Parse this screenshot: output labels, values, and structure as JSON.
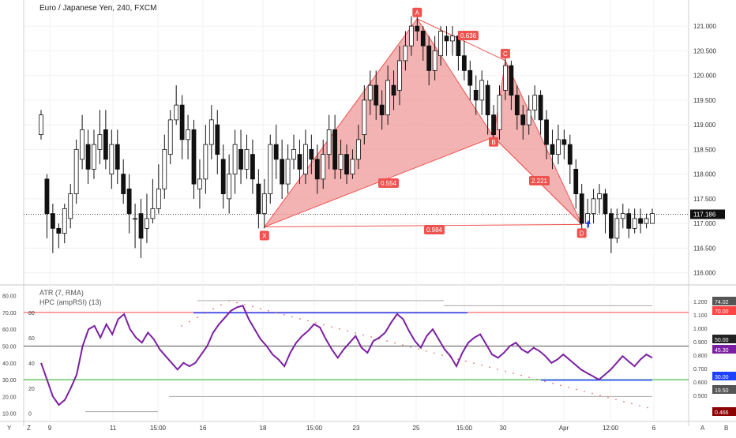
{
  "chart_title": "Euro / Japanese Yen, 240, FXCM",
  "indicators": {
    "atr_label": "ATR (7, RMA)",
    "hpc_label": "HPC (ampRSI) (13)"
  },
  "corner_labels": {
    "left": "Y",
    "z": "Z",
    "right_a": "A",
    "right_b": "B"
  },
  "colors": {
    "bull": "#ffffff",
    "bear": "#111111",
    "pattern_fill": "#ef9a9a",
    "pattern_stroke": "#ef5350",
    "rsi": "#7b1fa2",
    "up_line": "#1e40ff",
    "band_red": "#ff4444",
    "band_green": "#22aa22"
  },
  "chart_data": [
    {
      "type": "candlestick",
      "symbol": "EURJPY",
      "y_ticks": [
        "121.000",
        "120.500",
        "120.000",
        "119.500",
        "119.000",
        "118.500",
        "118.000",
        "117.500",
        "117.000",
        "116.500",
        "116.000"
      ],
      "ylim": [
        115.85,
        121.45
      ],
      "current_price": "117.186",
      "x_ticks": [
        "9",
        "11",
        "15:00",
        "16",
        "18",
        "15:00",
        "23",
        "25",
        "15:00",
        "30",
        "Apr",
        "12:00",
        "6"
      ],
      "pattern_points": [
        {
          "label": "X",
          "i": 38,
          "y": 116.93
        },
        {
          "label": "A",
          "i": 64,
          "y": 121.15
        },
        {
          "label": "B",
          "i": 77,
          "y": 118.75
        },
        {
          "label": "C",
          "i": 79,
          "y": 120.3
        },
        {
          "label": "D",
          "i": 92,
          "y": 116.98
        }
      ],
      "ratios": [
        "0.554",
        "0.636",
        "2.221",
        "0.984"
      ],
      "candles": [
        [
          118.8,
          119.2,
          119.3,
          118.7
        ],
        [
          117.9,
          117.2,
          118.0,
          116.7
        ],
        [
          117.2,
          116.9,
          117.4,
          116.4
        ],
        [
          116.9,
          116.8,
          117.0,
          116.5
        ],
        [
          116.8,
          117.3,
          117.4,
          116.6
        ],
        [
          117.1,
          117.6,
          117.8,
          116.9
        ],
        [
          117.6,
          118.5,
          118.7,
          117.4
        ],
        [
          118.3,
          118.9,
          119.2,
          118.1
        ],
        [
          118.6,
          118.1,
          118.9,
          117.8
        ],
        [
          118.1,
          118.6,
          118.9,
          117.9
        ],
        [
          118.5,
          118.8,
          119.3,
          118.2
        ],
        [
          118.9,
          118.3,
          119.3,
          118.1
        ],
        [
          118.0,
          118.6,
          118.9,
          117.7
        ],
        [
          118.6,
          118.1,
          118.9,
          117.8
        ],
        [
          118.0,
          117.6,
          118.3,
          117.4
        ],
        [
          117.7,
          117.2,
          118.0,
          116.8
        ],
        [
          117.1,
          117.1,
          117.4,
          116.5
        ],
        [
          117.2,
          116.7,
          117.5,
          116.3
        ],
        [
          116.9,
          117.1,
          117.6,
          116.6
        ],
        [
          117.1,
          117.3,
          117.9,
          117.0
        ],
        [
          117.3,
          117.7,
          118.2,
          117.2
        ],
        [
          117.7,
          118.5,
          118.8,
          117.5
        ],
        [
          118.4,
          119.1,
          119.3,
          118.2
        ],
        [
          119.1,
          119.4,
          119.8,
          119.0
        ],
        [
          119.4,
          118.7,
          119.6,
          118.3
        ],
        [
          118.7,
          118.9,
          119.2,
          118.3
        ],
        [
          118.9,
          117.8,
          119.1,
          117.5
        ],
        [
          117.7,
          117.9,
          118.3,
          117.3
        ],
        [
          117.9,
          118.6,
          119.0,
          117.6
        ],
        [
          118.6,
          119.1,
          119.4,
          118.3
        ],
        [
          119.0,
          118.4,
          119.3,
          118.0
        ],
        [
          118.3,
          117.6,
          118.6,
          117.3
        ],
        [
          117.5,
          118.0,
          118.4,
          117.2
        ],
        [
          118.0,
          118.6,
          118.9,
          117.6
        ],
        [
          118.5,
          118.1,
          118.9,
          117.8
        ],
        [
          118.1,
          118.5,
          118.8,
          117.9
        ],
        [
          118.4,
          117.9,
          118.7,
          117.6
        ],
        [
          117.8,
          117.2,
          118.1,
          116.9
        ],
        [
          117.2,
          117.6,
          117.9,
          116.9
        ],
        [
          117.6,
          118.6,
          118.8,
          117.4
        ],
        [
          118.6,
          118.3,
          119.0,
          117.9
        ],
        [
          118.3,
          117.8,
          118.7,
          117.5
        ],
        [
          117.8,
          118.3,
          118.6,
          117.6
        ],
        [
          118.3,
          118.5,
          118.8,
          118.1
        ],
        [
          118.4,
          118.1,
          118.7,
          117.8
        ],
        [
          118.0,
          118.6,
          118.9,
          117.8
        ],
        [
          118.5,
          118.3,
          118.8,
          118.0
        ],
        [
          118.3,
          117.9,
          118.6,
          117.6
        ],
        [
          117.9,
          118.4,
          118.7,
          117.7
        ],
        [
          118.4,
          118.9,
          119.2,
          118.1
        ],
        [
          118.9,
          118.1,
          119.2,
          117.9
        ],
        [
          118.1,
          118.4,
          118.7,
          117.9
        ],
        [
          118.4,
          118.0,
          118.6,
          117.8
        ],
        [
          118.0,
          118.3,
          118.5,
          117.9
        ],
        [
          118.3,
          118.7,
          119.0,
          118.1
        ],
        [
          118.8,
          119.5,
          119.8,
          118.6
        ],
        [
          119.5,
          119.8,
          120.1,
          119.2
        ],
        [
          119.8,
          119.4,
          120.1,
          119.1
        ],
        [
          119.4,
          119.2,
          119.7,
          118.9
        ],
        [
          119.2,
          119.9,
          120.2,
          119.0
        ],
        [
          119.8,
          119.6,
          120.1,
          119.3
        ],
        [
          119.7,
          120.3,
          120.6,
          119.4
        ],
        [
          120.3,
          120.6,
          120.9,
          120.1
        ],
        [
          120.6,
          121.0,
          121.2,
          120.4
        ],
        [
          121.0,
          120.9,
          121.2,
          120.7
        ],
        [
          120.9,
          120.6,
          121.0,
          120.3
        ],
        [
          120.6,
          120.1,
          120.8,
          119.8
        ],
        [
          120.1,
          120.5,
          120.8,
          119.9
        ],
        [
          120.4,
          120.9,
          121.0,
          120.2
        ],
        [
          120.8,
          120.7,
          121.0,
          120.4
        ],
        [
          120.7,
          120.8,
          121.0,
          120.4
        ],
        [
          120.8,
          120.4,
          120.9,
          120.1
        ],
        [
          120.4,
          120.1,
          120.7,
          119.9
        ],
        [
          120.1,
          119.8,
          120.3,
          119.5
        ],
        [
          119.7,
          119.5,
          120.0,
          119.2
        ],
        [
          119.5,
          119.9,
          120.1,
          119.2
        ],
        [
          119.8,
          119.2,
          119.9,
          118.8
        ],
        [
          119.2,
          118.8,
          119.4,
          118.6
        ],
        [
          118.9,
          119.6,
          119.8,
          118.7
        ],
        [
          119.7,
          120.2,
          120.4,
          119.5
        ],
        [
          120.2,
          119.6,
          120.3,
          119.3
        ],
        [
          119.6,
          119.2,
          119.8,
          118.9
        ],
        [
          119.2,
          119.0,
          119.4,
          118.7
        ],
        [
          119.0,
          119.3,
          119.6,
          118.8
        ],
        [
          119.3,
          119.6,
          119.8,
          119.1
        ],
        [
          119.6,
          119.1,
          119.7,
          118.8
        ],
        [
          119.1,
          118.6,
          119.3,
          118.3
        ],
        [
          118.6,
          118.4,
          118.9,
          118.1
        ],
        [
          118.4,
          118.7,
          119.0,
          118.2
        ],
        [
          118.7,
          118.6,
          118.9,
          118.3
        ],
        [
          118.6,
          118.2,
          118.8,
          117.8
        ],
        [
          118.1,
          117.6,
          118.3,
          117.3
        ],
        [
          117.6,
          117.0,
          117.8,
          116.8
        ],
        [
          117.0,
          117.2,
          117.5,
          116.9
        ],
        [
          117.2,
          117.5,
          117.7,
          117.0
        ],
        [
          117.5,
          117.6,
          117.8,
          117.2
        ],
        [
          117.6,
          117.2,
          117.7,
          116.8
        ],
        [
          117.2,
          116.7,
          117.3,
          116.4
        ],
        [
          116.7,
          117.1,
          117.3,
          116.6
        ],
        [
          117.1,
          117.2,
          117.4,
          116.9
        ],
        [
          117.2,
          116.9,
          117.3,
          116.7
        ],
        [
          116.9,
          117.1,
          117.3,
          116.8
        ],
        [
          117.1,
          117.0,
          117.3,
          116.8
        ],
        [
          117.0,
          117.1,
          117.2,
          116.9
        ],
        [
          117.0,
          117.2,
          117.3,
          117.0
        ]
      ]
    },
    {
      "type": "line",
      "name": "HPC (ampRSI) (13)",
      "y_ticks_left": [
        "80.00",
        "70.00",
        "60.00",
        "50.00",
        "40.00",
        "30.00",
        "20.00",
        "10.00"
      ],
      "y_ticks_inner": [
        "80",
        "60",
        "40",
        "20",
        "0"
      ],
      "y_ticks_right": [
        "1.200",
        "1.100",
        "1.000",
        "0.900",
        "0.800",
        "0.700",
        "0.600",
        "0.500"
      ],
      "ylim": [
        8,
        84
      ],
      "levels": {
        "upper": 70,
        "mid": 50,
        "lower": 30
      },
      "right_badges": [
        "74.02",
        "70.00",
        "50.00",
        "45.30",
        "30.00",
        "19.50",
        "0.466"
      ],
      "values": [
        40,
        30,
        20,
        15,
        18,
        25,
        33,
        50,
        60,
        62,
        55,
        63,
        57,
        66,
        69,
        60,
        55,
        52,
        58,
        54,
        48,
        44,
        40,
        36,
        40,
        38,
        40,
        45,
        50,
        58,
        63,
        67,
        71,
        73,
        74,
        66,
        60,
        54,
        50,
        45,
        42,
        38,
        46,
        52,
        56,
        59,
        63,
        61,
        54,
        48,
        43,
        48,
        52,
        56,
        49,
        46,
        53,
        55,
        58,
        64,
        69,
        66,
        59,
        53,
        49,
        56,
        60,
        54,
        48,
        44,
        38,
        46,
        52,
        55,
        57,
        51,
        45,
        43,
        46,
        50,
        52,
        48,
        46,
        49,
        47,
        44,
        40,
        42,
        45,
        42,
        39,
        36,
        34,
        32,
        30,
        33,
        36,
        40,
        44,
        41,
        38,
        42,
        45,
        43
      ],
      "dots": [
        [
          "0.49",
          "1.00"
        ]
      ]
    }
  ]
}
